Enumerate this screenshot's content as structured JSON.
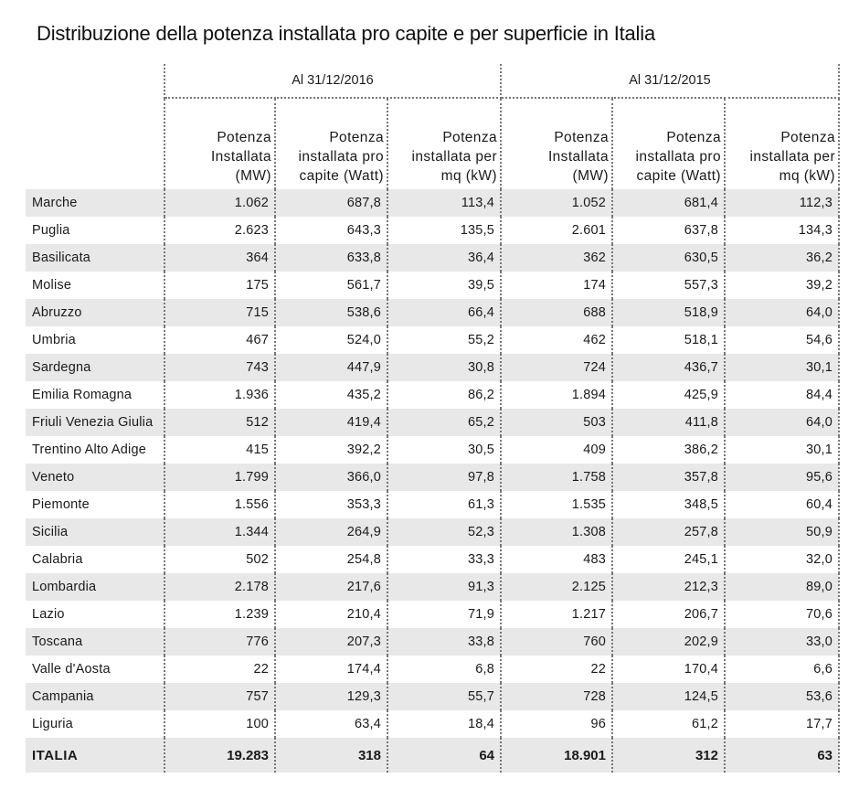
{
  "title": "Distribuzione della potenza installata pro capite e per superficie in Italia",
  "periods": [
    "Al 31/12/2016",
    "Al 31/12/2015"
  ],
  "columns": [
    [
      "Potenza",
      "Installata",
      "(MW)"
    ],
    [
      "Potenza",
      "installata pro",
      "capite (Watt)"
    ],
    [
      "Potenza",
      "installata per",
      "mq (kW)"
    ],
    [
      "Potenza",
      "Installata",
      "(MW)"
    ],
    [
      "Potenza",
      "installata pro",
      "capite (Watt)"
    ],
    [
      "Potenza",
      "installata per",
      "mq (kW)"
    ]
  ],
  "rows": [
    {
      "region": "Marche",
      "values": [
        "1.062",
        "687,8",
        "113,4",
        "1.052",
        "681,4",
        "112,3"
      ]
    },
    {
      "region": "Puglia",
      "values": [
        "2.623",
        "643,3",
        "135,5",
        "2.601",
        "637,8",
        "134,3"
      ]
    },
    {
      "region": "Basilicata",
      "values": [
        "364",
        "633,8",
        "36,4",
        "362",
        "630,5",
        "36,2"
      ]
    },
    {
      "region": "Molise",
      "values": [
        "175",
        "561,7",
        "39,5",
        "174",
        "557,3",
        "39,2"
      ]
    },
    {
      "region": "Abruzzo",
      "values": [
        "715",
        "538,6",
        "66,4",
        "688",
        "518,9",
        "64,0"
      ]
    },
    {
      "region": "Umbria",
      "values": [
        "467",
        "524,0",
        "55,2",
        "462",
        "518,1",
        "54,6"
      ]
    },
    {
      "region": "Sardegna",
      "values": [
        "743",
        "447,9",
        "30,8",
        "724",
        "436,7",
        "30,1"
      ]
    },
    {
      "region": "Emilia Romagna",
      "values": [
        "1.936",
        "435,2",
        "86,2",
        "1.894",
        "425,9",
        "84,4"
      ]
    },
    {
      "region": "Friuli Venezia Giulia",
      "values": [
        "512",
        "419,4",
        "65,2",
        "503",
        "411,8",
        "64,0"
      ]
    },
    {
      "region": "Trentino Alto Adige",
      "values": [
        "415",
        "392,2",
        "30,5",
        "409",
        "386,2",
        "30,1"
      ]
    },
    {
      "region": "Veneto",
      "values": [
        "1.799",
        "366,0",
        "97,8",
        "1.758",
        "357,8",
        "95,6"
      ]
    },
    {
      "region": "Piemonte",
      "values": [
        "1.556",
        "353,3",
        "61,3",
        "1.535",
        "348,5",
        "60,4"
      ]
    },
    {
      "region": "Sicilia",
      "values": [
        "1.344",
        "264,9",
        "52,3",
        "1.308",
        "257,8",
        "50,9"
      ]
    },
    {
      "region": "Calabria",
      "values": [
        "502",
        "254,8",
        "33,3",
        "483",
        "245,1",
        "32,0"
      ]
    },
    {
      "region": "Lombardia",
      "values": [
        "2.178",
        "217,6",
        "91,3",
        "2.125",
        "212,3",
        "89,0"
      ]
    },
    {
      "region": "Lazio",
      "values": [
        "1.239",
        "210,4",
        "71,9",
        "1.217",
        "206,7",
        "70,6"
      ]
    },
    {
      "region": "Toscana",
      "values": [
        "776",
        "207,3",
        "33,8",
        "760",
        "202,9",
        "33,0"
      ]
    },
    {
      "region": "Valle d'Aosta",
      "values": [
        "22",
        "174,4",
        "6,8",
        "22",
        "170,4",
        "6,6"
      ]
    },
    {
      "region": "Campania",
      "values": [
        "757",
        "129,3",
        "55,7",
        "728",
        "124,5",
        "53,6"
      ]
    },
    {
      "region": "Liguria",
      "values": [
        "100",
        "63,4",
        "18,4",
        "96",
        "61,2",
        "17,7"
      ]
    }
  ],
  "total": {
    "region": "ITALIA",
    "values": [
      "19.283",
      "318",
      "64",
      "18.901",
      "312",
      "63"
    ]
  },
  "colors": {
    "stripe": "#e8e8e8",
    "divider": "#777777"
  }
}
